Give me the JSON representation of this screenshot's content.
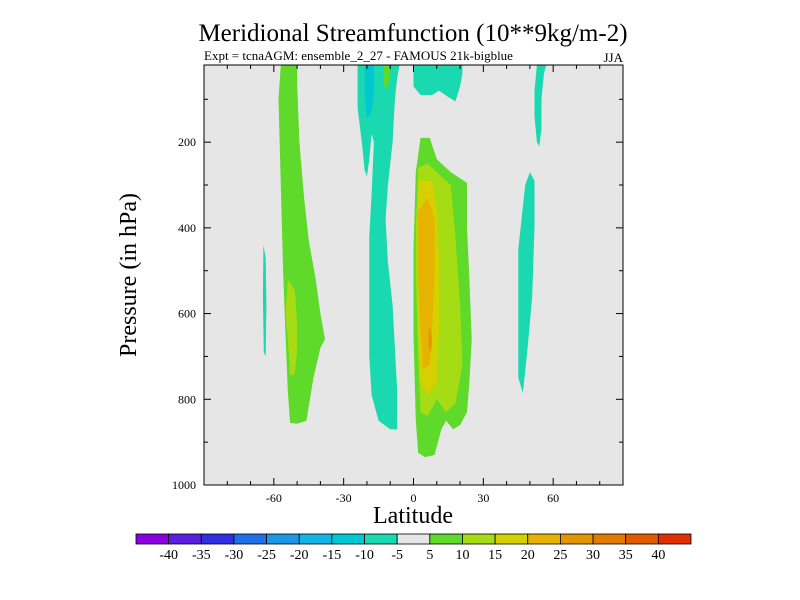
{
  "chart_data": {
    "type": "heatmap",
    "plot_style": "filled-contour",
    "title": "Meridional Streamfunction (10**9kg/m-2)",
    "subtitle_left": "Expt = tcnaAGM:  ensemble_2_27 - FAMOUS 21k-bigblue",
    "subtitle_right": "JJA",
    "xlabel": "Latitude",
    "ylabel": "Pressure (in hPa)",
    "xlim": [
      -90,
      90
    ],
    "ylim": [
      1000,
      20
    ],
    "x_ticks": [
      -60,
      -30,
      0,
      30,
      60
    ],
    "x_tick_labels": [
      "-60",
      "-30",
      "0",
      "30",
      "60"
    ],
    "y_ticks": [
      200,
      400,
      600,
      800,
      1000
    ],
    "y_tick_labels": [
      "200",
      "400",
      "600",
      "800",
      "1000"
    ],
    "background_color": "#e6e6e6",
    "colorbar": {
      "colors": [
        "#8a00e0",
        "#5a1ee0",
        "#3030e0",
        "#1f6fe6",
        "#1e96e6",
        "#15b4e6",
        "#00c8d2",
        "#1ad9b0",
        "#e6e6e6",
        "#5fd92a",
        "#a6dc14",
        "#d6d000",
        "#e6b400",
        "#e09600",
        "#e07a00",
        "#e05a00",
        "#e03000"
      ],
      "labels": [
        "-40",
        "-35",
        "-30",
        "-25",
        "-20",
        "-15",
        "-10",
        "-5",
        "5",
        "10",
        "15",
        "20",
        "25",
        "30",
        "35",
        "40"
      ]
    },
    "regions": [
      {
        "name": "sh-positive-cell",
        "level": 5,
        "color": "#5fd92a",
        "points": [
          [
            -57,
            20
          ],
          [
            -50,
            20
          ],
          [
            -50,
            60
          ],
          [
            -49,
            200
          ],
          [
            -47,
            330
          ],
          [
            -45,
            430
          ],
          [
            -42,
            520
          ],
          [
            -40,
            600
          ],
          [
            -38,
            660
          ],
          [
            -40,
            680
          ],
          [
            -43,
            750
          ],
          [
            -46,
            850
          ],
          [
            -50,
            857
          ],
          [
            -53,
            855
          ],
          [
            -54,
            780
          ],
          [
            -55,
            650
          ],
          [
            -56,
            500
          ],
          [
            -57,
            300
          ],
          [
            -58,
            100
          ]
        ]
      },
      {
        "name": "sh-positive-core",
        "level": 10,
        "color": "#a6dc14",
        "points": [
          [
            -54,
            520
          ],
          [
            -51,
            545
          ],
          [
            -50,
            620
          ],
          [
            -50,
            690
          ],
          [
            -51,
            740
          ],
          [
            -53,
            745
          ],
          [
            -54,
            660
          ],
          [
            -55,
            600
          ]
        ]
      },
      {
        "name": "sh-negative-sliver",
        "level": -5,
        "color": "#1ad9b0",
        "points": [
          [
            -64.5,
            440
          ],
          [
            -63.5,
            470
          ],
          [
            -63.2,
            580
          ],
          [
            -63.5,
            700
          ],
          [
            -64.3,
            690
          ],
          [
            -64.7,
            560
          ]
        ]
      },
      {
        "name": "southern-tropics-negative",
        "level": -5,
        "color": "#1ad9b0",
        "points": [
          [
            -24,
            20
          ],
          [
            -6,
            20
          ],
          [
            -7,
            50
          ],
          [
            -8,
            100
          ],
          [
            -9,
            200
          ],
          [
            -11,
            300
          ],
          [
            -12,
            380
          ],
          [
            -11,
            480
          ],
          [
            -9,
            580
          ],
          [
            -8,
            680
          ],
          [
            -7,
            780
          ],
          [
            -7,
            870
          ],
          [
            -10,
            870
          ],
          [
            -15,
            850
          ],
          [
            -18,
            790
          ],
          [
            -19,
            700
          ],
          [
            -19,
            610
          ],
          [
            -19,
            520
          ],
          [
            -19,
            420
          ],
          [
            -18,
            320
          ],
          [
            -17,
            200
          ],
          [
            -18,
            180
          ],
          [
            -19,
            240
          ],
          [
            -20,
            280
          ],
          [
            -21,
            265
          ],
          [
            -22,
            210
          ],
          [
            -24,
            120
          ]
        ]
      },
      {
        "name": "tropics-negative-core",
        "level": -10,
        "color": "#00c8d2",
        "points": [
          [
            -21,
            20
          ],
          [
            -17,
            20
          ],
          [
            -17,
            80
          ],
          [
            -18,
            130
          ],
          [
            -20,
            145
          ],
          [
            -21,
            90
          ]
        ]
      },
      {
        "name": "near-equator-upper-positive",
        "level": 5,
        "color": "#5fd92a",
        "points": [
          [
            -13,
            20
          ],
          [
            -10,
            20
          ],
          [
            -10,
            50
          ],
          [
            -12,
            80
          ],
          [
            -13,
            60
          ]
        ]
      },
      {
        "name": "equatorial-upper-negative",
        "level": -5,
        "color": "#1ad9b0",
        "points": [
          [
            0,
            20
          ],
          [
            21,
            20
          ],
          [
            21,
            40
          ],
          [
            20,
            70
          ],
          [
            18,
            105
          ],
          [
            15,
            95
          ],
          [
            11,
            80
          ],
          [
            8,
            90
          ],
          [
            3,
            90
          ],
          [
            0,
            70
          ]
        ]
      },
      {
        "name": "nh-negative-upper",
        "level": -5,
        "color": "#1ad9b0",
        "points": [
          [
            53,
            20
          ],
          [
            57,
            20
          ],
          [
            56,
            40
          ],
          [
            55,
            100
          ],
          [
            55,
            170
          ],
          [
            54,
            210
          ],
          [
            53,
            200
          ],
          [
            52,
            140
          ],
          [
            52,
            80
          ]
        ]
      },
      {
        "name": "nh-negative-mid",
        "level": -5,
        "color": "#1ad9b0",
        "points": [
          [
            48,
            300
          ],
          [
            50,
            270
          ],
          [
            52,
            290
          ],
          [
            52,
            400
          ],
          [
            51,
            560
          ],
          [
            49,
            680
          ],
          [
            47,
            785
          ],
          [
            45,
            750
          ],
          [
            45,
            600
          ],
          [
            45,
            450
          ]
        ]
      },
      {
        "name": "hadley-cell",
        "level": 5,
        "color": "#5fd92a",
        "points": [
          [
            1,
            270
          ],
          [
            3,
            190
          ],
          [
            7,
            190
          ],
          [
            10,
            240
          ],
          [
            16,
            270
          ],
          [
            23,
            295
          ],
          [
            23,
            400
          ],
          [
            24,
            520
          ],
          [
            25,
            660
          ],
          [
            24,
            760
          ],
          [
            23,
            830
          ],
          [
            20,
            860
          ],
          [
            17,
            870
          ],
          [
            14,
            850
          ],
          [
            12,
            870
          ],
          [
            9,
            930
          ],
          [
            5,
            935
          ],
          [
            2,
            925
          ],
          [
            1,
            850
          ],
          [
            0,
            650
          ],
          [
            0,
            450
          ]
        ]
      },
      {
        "name": "hadley-cell-level-10",
        "level": 10,
        "color": "#a6dc14",
        "points": [
          [
            2,
            260
          ],
          [
            6,
            250
          ],
          [
            10,
            270
          ],
          [
            16,
            300
          ],
          [
            18,
            420
          ],
          [
            20,
            580
          ],
          [
            21,
            720
          ],
          [
            18,
            810
          ],
          [
            14,
            830
          ],
          [
            10,
            800
          ],
          [
            6,
            840
          ],
          [
            3,
            830
          ],
          [
            2,
            700
          ],
          [
            1,
            520
          ],
          [
            1,
            400
          ]
        ]
      },
      {
        "name": "hadley-cell-level-15",
        "level": 15,
        "color": "#d6d000",
        "points": [
          [
            2,
            290
          ],
          [
            8,
            290
          ],
          [
            10,
            360
          ],
          [
            11,
            470
          ],
          [
            11,
            620
          ],
          [
            10,
            760
          ],
          [
            6,
            790
          ],
          [
            3,
            760
          ],
          [
            2,
            640
          ],
          [
            2,
            460
          ]
        ]
      },
      {
        "name": "hadley-cell-level-20",
        "level": 20,
        "color": "#e6b400",
        "points": [
          [
            2,
            360
          ],
          [
            6,
            330
          ],
          [
            9,
            380
          ],
          [
            9,
            500
          ],
          [
            8,
            640
          ],
          [
            7,
            720
          ],
          [
            4,
            730
          ],
          [
            3,
            640
          ],
          [
            2,
            520
          ]
        ]
      },
      {
        "name": "hadley-cell-peak",
        "level": 25,
        "color": "#e09600",
        "points": [
          [
            7,
            630
          ],
          [
            8,
            660
          ],
          [
            7.5,
            690
          ],
          [
            6.5,
            680
          ],
          [
            6.5,
            650
          ]
        ]
      }
    ]
  }
}
